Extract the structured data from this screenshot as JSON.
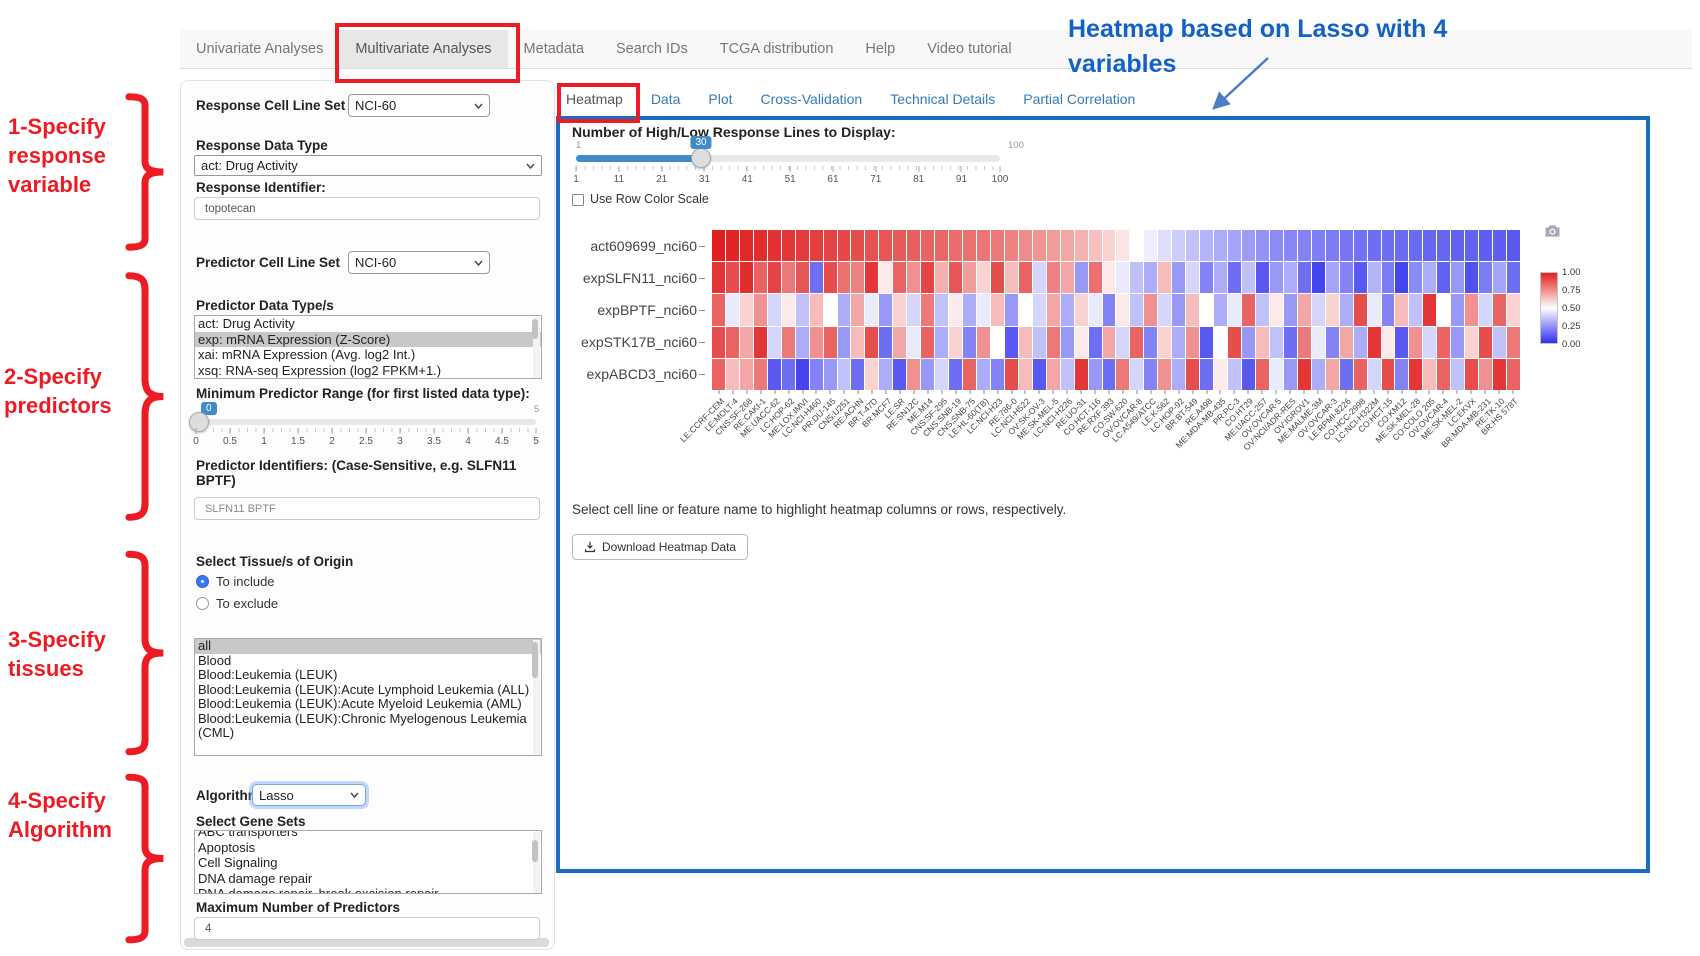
{
  "nav": {
    "items": [
      {
        "label": "Univariate Analyses",
        "active": false
      },
      {
        "label": "Multivariate Analyses",
        "active": true,
        "red_boxed": true
      },
      {
        "label": "Metadata",
        "active": false
      },
      {
        "label": "Search IDs",
        "active": false
      },
      {
        "label": "TCGA distribution",
        "active": false
      },
      {
        "label": "Help",
        "active": false
      },
      {
        "label": "Video tutorial",
        "active": false
      }
    ]
  },
  "annotations": {
    "red_color": "#ed1b24",
    "blue_color": "#1261c4",
    "step1": "1-Specify\nresponse\nvariable",
    "step2": "2-Specify\npredictors",
    "step3": "3-Specify\ntissues",
    "step4": "4-Specify\nAlgorithm",
    "heatmap_note": "Heatmap based on Lasso with 4 variables"
  },
  "form": {
    "response_cell_line_set_label": "Response Cell Line Set",
    "response_cell_line_set_value": "NCI-60",
    "response_data_type_label": "Response Data Type",
    "response_data_type_value": "act: Drug Activity",
    "response_identifier_label": "Response Identifier:",
    "response_identifier_value": "topotecan",
    "predictor_cell_line_set_label": "Predictor Cell Line Set",
    "predictor_cell_line_set_value": "NCI-60",
    "predictor_data_types_label": "Predictor Data Type/s",
    "predictor_data_types": [
      {
        "label": "act: Drug Activity",
        "selected": false
      },
      {
        "label": "exp: mRNA Expression (Z-Score)",
        "selected": true
      },
      {
        "label": "xai: mRNA Expression (Avg. log2 Int.)",
        "selected": false
      },
      {
        "label": "xsq: RNA-seq Expression (log2 FPKM+1.)",
        "selected": false
      }
    ],
    "min_range_slider": {
      "label": "Minimum Predictor Range (for first listed data type):",
      "min": 0,
      "max": 5,
      "value": 0,
      "value_label": "0",
      "max_label": "5",
      "ticks": [
        0,
        0.5,
        1,
        1.5,
        2,
        2.5,
        3,
        3.5,
        4,
        4.5,
        5
      ]
    },
    "predictor_identifiers_label": "Predictor Identifiers: (Case-Sensitive, e.g. SLFN11 BPTF)",
    "predictor_identifiers_value": "SLFN11 BPTF",
    "tissue_label": "Select Tissue/s of Origin",
    "tissue_radio_include": "To include",
    "tissue_radio_exclude": "To exclude",
    "tissue_include_selected": true,
    "tissues": [
      {
        "label": "all",
        "selected": true
      },
      {
        "label": "Blood",
        "selected": false
      },
      {
        "label": "Blood:Leukemia (LEUK)",
        "selected": false
      },
      {
        "label": "Blood:Leukemia (LEUK):Acute Lymphoid Leukemia (ALL)",
        "selected": false
      },
      {
        "label": "Blood:Leukemia (LEUK):Acute Myeloid Leukemia (AML)",
        "selected": false
      },
      {
        "label": "Blood:Leukemia (LEUK):Chronic Myelogenous Leukemia (CML)",
        "selected": false
      }
    ],
    "algorithm_label": "Algorithm",
    "algorithm_value": "Lasso",
    "gene_sets_label": "Select Gene Sets",
    "gene_sets": [
      {
        "label": "ABC transporters",
        "selected": false
      },
      {
        "label": "Apoptosis",
        "selected": false
      },
      {
        "label": "Cell Signaling",
        "selected": false
      },
      {
        "label": "DNA damage repair",
        "selected": false
      },
      {
        "label": "DNA damage repair, break excision repair",
        "selected": false
      }
    ],
    "max_predictors_label": "Maximum Number of Predictors",
    "max_predictors_value": "4"
  },
  "tabs": {
    "items": [
      {
        "label": "Heatmap",
        "active": true,
        "red_boxed": true
      },
      {
        "label": "Data",
        "active": false
      },
      {
        "label": "Plot",
        "active": false
      },
      {
        "label": "Cross-Validation",
        "active": false
      },
      {
        "label": "Technical Details",
        "active": false
      },
      {
        "label": "Partial Correlation",
        "active": false
      }
    ]
  },
  "heatmap_panel": {
    "display_slider": {
      "label": "Number of High/Low Response Lines to Display:",
      "min": 1,
      "max": 100,
      "value": 30,
      "min_label": "1",
      "max_label": "100",
      "value_label": "30",
      "ticks": [
        1,
        11,
        21,
        31,
        41,
        51,
        61,
        71,
        81,
        91,
        100
      ]
    },
    "row_scale_label": "Use Row Color Scale",
    "help_text": "Select cell line or feature name to highlight heatmap columns or rows, respectively.",
    "download_label": "Download Heatmap Data",
    "legend_ticks": [
      "1.00",
      "0.75",
      "0.50",
      "0.25",
      "0.00"
    ]
  },
  "chart_data": {
    "type": "heatmap",
    "rows": [
      "act609699_nci60",
      "expSLFN11_nci60",
      "expBPTF_nci60",
      "expSTK17B_nci60",
      "expABCD3_nci60"
    ],
    "columns": [
      "LE:CCRF-CEM",
      "LE:MOLT-4",
      "CNS:SF-268",
      "RE:CAKI-1",
      "ME:UACC-62",
      "LC:HOP-62",
      "ME:LOX IMVI",
      "LC:NCI-H460",
      "PR:DU-145",
      "CNS:U251",
      "RE:ACHN",
      "BR:T-47D",
      "BR:MCF7",
      "LE:SR",
      "RE:SN12C",
      "ME:M14",
      "CNS:SF-295",
      "CNS:SNB-19",
      "CNS:SNB-75",
      "LE:HL-60(TB)",
      "LC:NCI-H23",
      "RE:786-0",
      "LC:NCI-H522",
      "OV:SK-OV-3",
      "ME:SK-MEL-5",
      "LC:NCI-H226",
      "RE:UO-31",
      "CO:HCT-116",
      "RE:RXF 393",
      "CO:SW-620",
      "OV:OVCAR-8",
      "LC:A549/ATCC",
      "LE:K-562",
      "LC:HOP-92",
      "BR:BT-549",
      "RE:A498",
      "ME:MDA-MB-435",
      "PR:PC-3",
      "CO:HT29",
      "ME:UACC-257",
      "OV:OVCAR-5",
      "OV:NCI/ADR-RES",
      "OV:IGROV1",
      "ME:MALME-3M",
      "OV:OVCAR-3",
      "LE:RPMI-8226",
      "CO:HCC-2998",
      "LC:NCI-H322M",
      "CO:HCT-15",
      "CO:KM12",
      "ME:SK-MEL-28",
      "CO:COLO 205",
      "OV:OVCAR-4",
      "ME:SK-MEL-2",
      "LC:EKVX",
      "BR:MDA-MB-231",
      "RE:TK-10",
      "BR:HS 578T"
    ],
    "values": [
      [
        1.0,
        0.99,
        0.98,
        0.97,
        0.96,
        0.95,
        0.94,
        0.93,
        0.92,
        0.91,
        0.9,
        0.89,
        0.88,
        0.87,
        0.86,
        0.85,
        0.84,
        0.83,
        0.82,
        0.81,
        0.8,
        0.78,
        0.76,
        0.74,
        0.72,
        0.7,
        0.67,
        0.64,
        0.6,
        0.56,
        0.5,
        0.46,
        0.42,
        0.38,
        0.35,
        0.32,
        0.3,
        0.28,
        0.26,
        0.24,
        0.22,
        0.21,
        0.2,
        0.19,
        0.18,
        0.17,
        0.16,
        0.15,
        0.15,
        0.14,
        0.14,
        0.13,
        0.13,
        0.12,
        0.12,
        0.11,
        0.11,
        0.1
      ],
      [
        0.95,
        0.9,
        0.97,
        0.85,
        0.92,
        0.8,
        0.88,
        0.15,
        0.9,
        0.82,
        0.78,
        0.95,
        0.55,
        0.85,
        0.75,
        0.92,
        0.68,
        0.88,
        0.72,
        0.6,
        0.9,
        0.65,
        0.85,
        0.4,
        0.78,
        0.7,
        0.25,
        0.82,
        0.55,
        0.45,
        0.35,
        0.3,
        0.65,
        0.25,
        0.4,
        0.2,
        0.3,
        0.15,
        0.35,
        0.1,
        0.25,
        0.3,
        0.15,
        0.05,
        0.28,
        0.2,
        0.1,
        0.32,
        0.18,
        0.05,
        0.22,
        0.3,
        0.12,
        0.25,
        0.08,
        0.18,
        0.28,
        0.15
      ],
      [
        0.85,
        0.45,
        0.6,
        0.75,
        0.4,
        0.55,
        0.35,
        0.65,
        0.5,
        0.3,
        0.7,
        0.45,
        0.25,
        0.6,
        0.4,
        0.8,
        0.35,
        0.55,
        0.3,
        0.45,
        0.65,
        0.25,
        0.5,
        0.4,
        0.7,
        0.3,
        0.6,
        0.45,
        0.2,
        0.55,
        0.35,
        0.75,
        0.4,
        0.25,
        0.65,
        0.5,
        0.3,
        0.45,
        0.85,
        0.35,
        0.55,
        0.25,
        0.7,
        0.4,
        0.6,
        0.3,
        0.9,
        0.45,
        0.2,
        0.65,
        0.35,
        0.95,
        0.5,
        0.25,
        0.75,
        0.4,
        0.85,
        0.6
      ],
      [
        0.9,
        0.85,
        0.7,
        0.95,
        0.4,
        0.8,
        0.3,
        0.75,
        0.85,
        0.25,
        0.65,
        0.9,
        0.15,
        0.7,
        0.45,
        0.85,
        0.3,
        0.6,
        0.2,
        0.75,
        0.5,
        0.1,
        0.65,
        0.35,
        0.8,
        0.25,
        0.55,
        0.15,
        0.7,
        0.4,
        0.85,
        0.2,
        0.6,
        0.3,
        0.75,
        0.1,
        0.5,
        0.9,
        0.25,
        0.65,
        0.35,
        0.15,
        0.8,
        0.45,
        0.2,
        0.7,
        0.3,
        0.95,
        0.55,
        0.1,
        0.75,
        0.4,
        0.85,
        0.25,
        0.6,
        0.9,
        0.35,
        0.8
      ],
      [
        0.85,
        0.65,
        0.7,
        0.8,
        0.1,
        0.15,
        0.05,
        0.2,
        0.25,
        0.35,
        0.15,
        0.6,
        0.3,
        0.1,
        0.75,
        0.25,
        0.4,
        0.15,
        0.85,
        0.3,
        0.2,
        0.9,
        0.65,
        0.1,
        0.7,
        0.35,
        0.95,
        0.25,
        0.15,
        0.8,
        0.4,
        0.2,
        0.75,
        0.3,
        0.9,
        0.15,
        0.55,
        0.35,
        0.1,
        0.85,
        0.45,
        0.25,
        0.95,
        0.3,
        0.7,
        0.15,
        0.85,
        0.4,
        0.9,
        0.2,
        0.95,
        0.65,
        0.85,
        0.35,
        0.9,
        0.75,
        0.95,
        0.85
      ]
    ],
    "value_range": [
      0,
      1
    ],
    "colorscale": [
      {
        "value": 0,
        "color": "#3030ee"
      },
      {
        "value": 0.5,
        "color": "#ffffff"
      },
      {
        "value": 1,
        "color": "#e02020"
      }
    ],
    "legend_ticks": [
      "1.00",
      "0.75",
      "0.50",
      "0.25",
      "0.00"
    ],
    "legend_position": "right"
  }
}
